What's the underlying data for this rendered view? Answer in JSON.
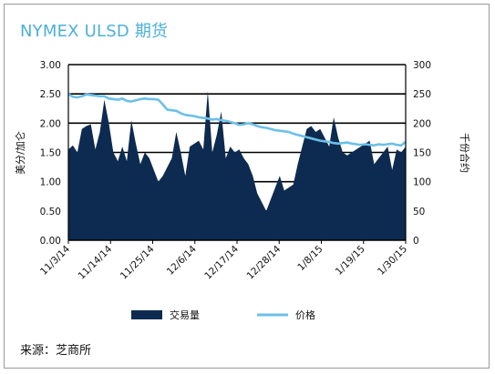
{
  "title": "NYMEX ULSD 期货",
  "source": "来源：芝商所",
  "chart_data": {
    "type": "area",
    "x_tick_labels": [
      "11/3/14",
      "11/14/14",
      "11/25/14",
      "12/6/14",
      "12/17/14",
      "12/28/14",
      "1/8/15",
      "1/19/15",
      "1/30/15"
    ],
    "y_left": {
      "label": "美分/加仑",
      "min": 0,
      "max": 3,
      "ticks": [
        "0.00",
        "0.50",
        "1.00",
        "1.50",
        "2.00",
        "2.50",
        "3.00"
      ]
    },
    "y_right": {
      "label": "千份合约",
      "min": 0,
      "max": 300,
      "ticks": [
        "0",
        "50",
        "100",
        "150",
        "200",
        "250",
        "300"
      ]
    },
    "grid": "horizontal",
    "legend_position": "bottom",
    "series": [
      {
        "name": "交易量",
        "axis": "right",
        "kind": "area",
        "color": "#0d2b50",
        "values": [
          155,
          162,
          150,
          190,
          195,
          198,
          155,
          185,
          240,
          200,
          150,
          135,
          160,
          135,
          205,
          165,
          130,
          150,
          140,
          120,
          100,
          110,
          125,
          140,
          185,
          150,
          110,
          160,
          165,
          170,
          155,
          255,
          150,
          180,
          220,
          140,
          160,
          150,
          155,
          140,
          130,
          110,
          80,
          65,
          50,
          70,
          90,
          110,
          85,
          90,
          95,
          130,
          160,
          190,
          195,
          185,
          190,
          175,
          160,
          210,
          175,
          150,
          145,
          150,
          155,
          160,
          165,
          170,
          130,
          140,
          150,
          160,
          120,
          155,
          150,
          160
        ]
      },
      {
        "name": "价格",
        "axis": "left",
        "kind": "line",
        "color": "#6cc0e8",
        "values": [
          2.5,
          2.45,
          2.44,
          2.46,
          2.49,
          2.48,
          2.47,
          2.46,
          2.46,
          2.42,
          2.41,
          2.4,
          2.42,
          2.38,
          2.37,
          2.39,
          2.41,
          2.42,
          2.41,
          2.41,
          2.4,
          2.32,
          2.23,
          2.22,
          2.21,
          2.17,
          2.14,
          2.13,
          2.12,
          2.1,
          2.09,
          2.08,
          2.06,
          2.07,
          2.05,
          2.04,
          2.02,
          2.0,
          1.97,
          1.98,
          2.0,
          1.98,
          1.95,
          1.93,
          1.92,
          1.9,
          1.88,
          1.87,
          1.86,
          1.85,
          1.82,
          1.8,
          1.78,
          1.76,
          1.74,
          1.72,
          1.7,
          1.69,
          1.68,
          1.66,
          1.65,
          1.66,
          1.67,
          1.65,
          1.64,
          1.63,
          1.64,
          1.63,
          1.62,
          1.64,
          1.63,
          1.64,
          1.65,
          1.63,
          1.62,
          1.68
        ]
      }
    ]
  }
}
